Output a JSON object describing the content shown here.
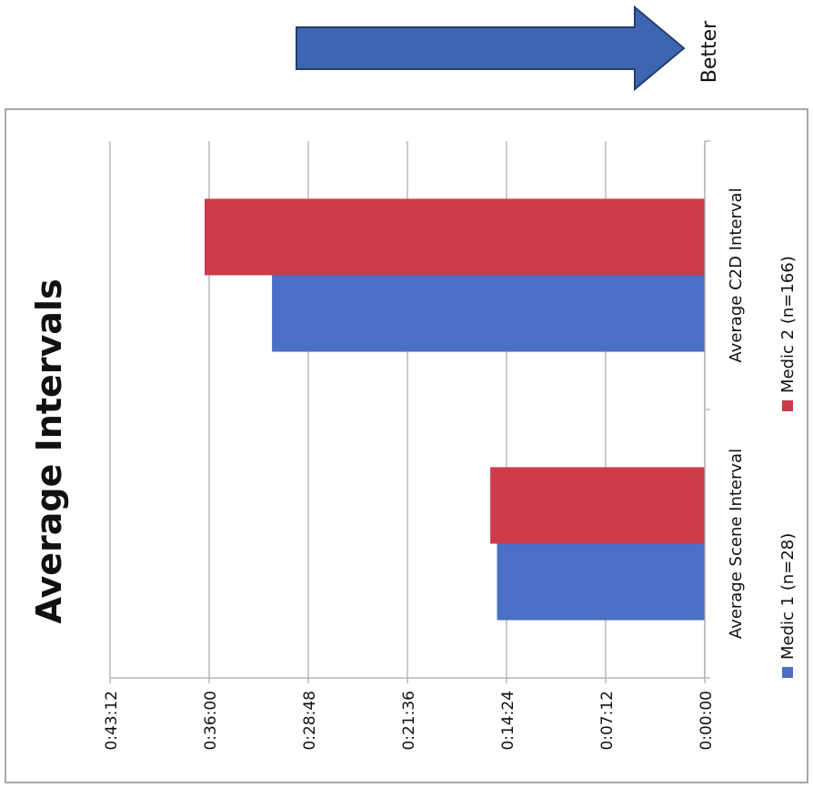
{
  "annotation": {
    "arrow_label": "Better"
  },
  "colors": {
    "medic1": "#4a6fc4",
    "medic2": "#cc3b4a",
    "arrow": "#3e66b0",
    "grid": "#a8a8a8",
    "frame": "#8a8a8a"
  },
  "chart_data": {
    "type": "bar",
    "orientation": "rotated-90-ccw",
    "title": "Average Intervals",
    "categories": [
      "Average Scene Interval",
      "Average C2D Interval"
    ],
    "series": [
      {
        "name": "Medic 1 (n=28)",
        "values": [
          0.01048,
          0.02183
        ]
      },
      {
        "name": "Medic 2 (n=166)",
        "values": [
          0.01082,
          0.02523
        ]
      }
    ],
    "value_unit": "fraction of a day (h:mm:ss)",
    "ylim": [
      0,
      0.03
    ],
    "yticks": [
      "0:00:00",
      "0:07:12",
      "0:14:24",
      "0:21:36",
      "0:28:48",
      "0:36:00",
      "0:43:12"
    ],
    "grid": true,
    "legend": "bottom"
  }
}
